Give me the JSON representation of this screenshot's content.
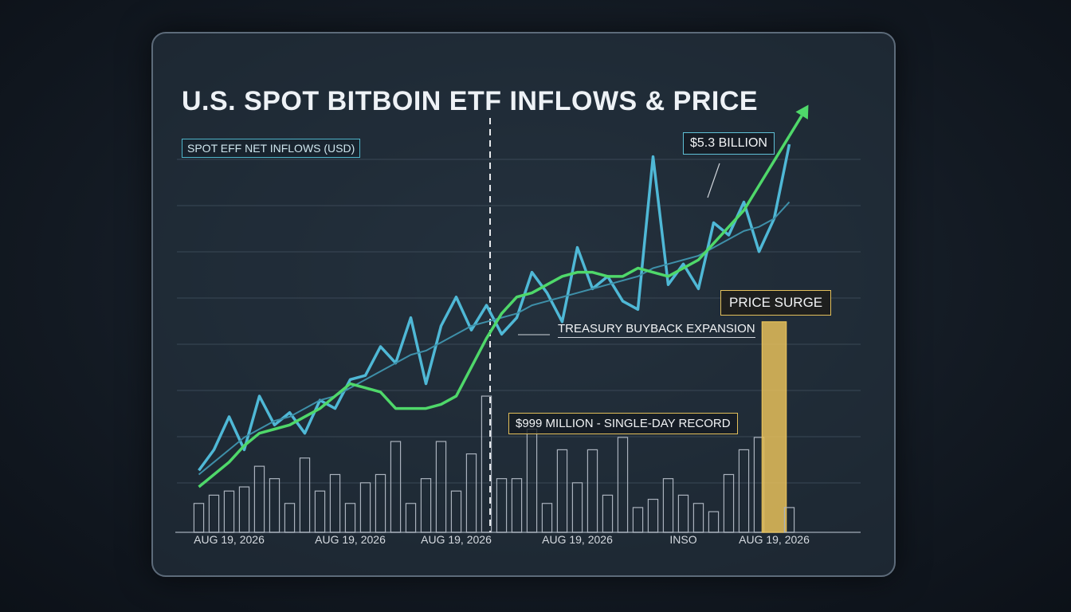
{
  "chart_data": {
    "type": "bar",
    "title": "U.S. SPOT BITBOIN ETF INFLOWS & PRICE",
    "subtitle": "SPOT EFF NET INFLOWS (USD)",
    "annotations": [
      "$5.3 BILLION",
      "PRICE SURGE",
      "TREASURY BUYBACK EXPANSION",
      "$999 MILLION - SINGLE-DAY RECORD"
    ],
    "categories": [
      null,
      null,
      "AUG 19, 2026",
      null,
      null,
      null,
      null,
      null,
      null,
      null,
      "AUG 19, 2026",
      null,
      null,
      null,
      null,
      null,
      null,
      "AUG 19, 2026",
      null,
      null,
      null,
      null,
      null,
      null,
      null,
      "AUG 19, 2026",
      null,
      null,
      null,
      null,
      null,
      null,
      "INSO",
      null,
      null,
      null,
      null,
      null,
      "AUG 19, 2026",
      null
    ],
    "ylim": [
      0,
      100
    ],
    "series": [
      {
        "type": "bar",
        "colors": [
          "#aab2bd",
          "#aab2bd",
          "#aab2bd",
          "#aab2bd",
          "#aab2bd",
          "#aab2bd",
          "#aab2bd",
          "#aab2bd",
          "#aab2bd",
          "#aab2bd",
          "#aab2bd",
          "#aab2bd",
          "#aab2bd",
          "#aab2bd",
          "#aab2bd",
          "#aab2bd",
          "#aab2bd",
          "#aab2bd",
          "#aab2bd",
          "#aab2bd",
          "#aab2bd",
          "#aab2bd",
          "#aab2bd",
          "#aab2bd",
          "#aab2bd",
          "#aab2bd",
          "#aab2bd",
          "#aab2bd",
          "#aab2bd",
          "#aab2bd",
          "#aab2bd",
          "#aab2bd",
          "#aab2bd",
          "#aab2bd",
          "#aab2bd",
          "#aab2bd",
          "#aab2bd",
          "#aab2bd",
          "#e6c05a",
          "#aab2bd"
        ],
        "values": [
          7,
          9,
          10,
          11,
          16,
          13,
          7,
          18,
          10,
          14,
          7,
          12,
          14,
          22,
          7,
          13,
          22,
          10,
          19,
          33,
          13,
          13,
          25,
          7,
          20,
          12,
          20,
          9,
          23,
          6,
          8,
          13,
          9,
          7,
          5,
          14,
          20,
          23,
          51,
          6
        ]
      },
      {
        "type": "line",
        "color": "#4fb8d6",
        "width": 3.5,
        "values": [
          15,
          20,
          28,
          20,
          33,
          26,
          29,
          24,
          32,
          30,
          37,
          38,
          45,
          41,
          52,
          36,
          50,
          57,
          49,
          55,
          48,
          52,
          63,
          58,
          51,
          69,
          59,
          62,
          56,
          54,
          91,
          60,
          65,
          59,
          75,
          72,
          80,
          68,
          76,
          94
        ]
      },
      {
        "type": "line",
        "color": "#3e8fa8",
        "width": 2,
        "values": [
          14,
          17,
          20,
          23,
          25,
          27,
          28,
          30,
          32,
          33,
          35,
          37,
          39,
          41,
          43,
          44,
          46,
          48,
          50,
          51,
          52,
          53,
          55,
          56,
          57,
          58,
          59,
          60,
          61,
          62,
          64,
          65,
          66,
          67,
          69,
          71,
          73,
          74,
          76,
          80
        ]
      },
      {
        "type": "line",
        "color": "#4fd86a",
        "width": 3.5,
        "values": [
          11,
          14,
          17,
          21,
          24,
          25,
          26,
          28,
          30,
          33,
          36,
          35,
          34,
          30,
          30,
          30,
          31,
          33,
          40,
          47,
          53,
          57,
          58,
          60,
          62,
          63,
          63,
          62,
          62,
          64,
          63,
          62,
          64,
          66,
          70,
          74,
          78,
          84,
          90,
          96
        ]
      }
    ]
  }
}
